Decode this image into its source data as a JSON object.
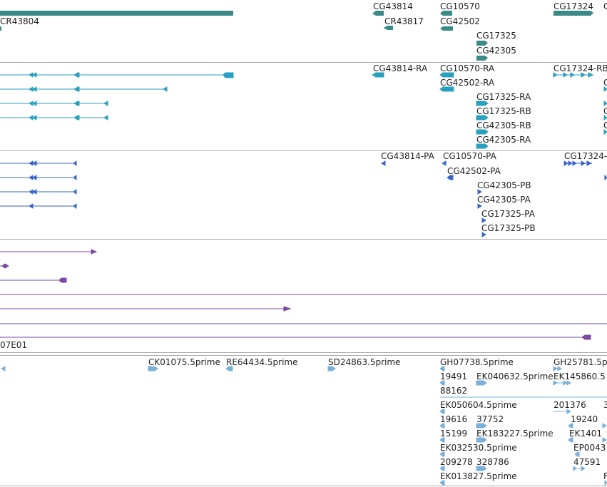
{
  "colors": {
    "gene": "#3a8a8a",
    "transcript": "#2aa0c0",
    "protein": "#3a66c8",
    "cdna": "#7a4aa0",
    "est": "#7ab0d8",
    "separator": "#aaaaaa"
  },
  "tracks": {
    "genes": {
      "labels": [
        "CR43804",
        "CG43814",
        "CR43817",
        "CG10570",
        "CG42502",
        "CG17325",
        "CG42305",
        "CG17324",
        "C"
      ]
    },
    "transcripts": {
      "labels": [
        "CG43814-RA",
        "CG10570-RA",
        "CG42502-RA",
        "CG17325-RA",
        "CG17325-RB",
        "CG42305-RB",
        "CG42305-RA",
        "CG17324-RB",
        "C",
        "C",
        "C"
      ]
    },
    "proteins": {
      "labels": [
        "CG43814-PA",
        "CG10570-PA",
        "CG42502-PA",
        "CG42305-PB",
        "CG42305-PA",
        "CG17325-PA",
        "CG17325-PB",
        "CG17324-"
      ]
    },
    "cdnas": {
      "labels": [
        "07E01"
      ]
    },
    "ests": {
      "labels": [
        "CK01075.5prime",
        "RE64434.5prime",
        "SD24863.5prime",
        "GH07738.5prime",
        "GH25781.5p",
        "19491",
        "EK040632.5prime",
        "EK145860.5",
        "88162",
        "EK050604.5prime",
        "201376",
        "3",
        "19616",
        "37752",
        "19240",
        "15199",
        "EK183227.5prime",
        "EK1401",
        "EK032530.5prime",
        "EP0043",
        "209278",
        "328786",
        "47591",
        "EK013827.5prime",
        "F"
      ]
    }
  }
}
